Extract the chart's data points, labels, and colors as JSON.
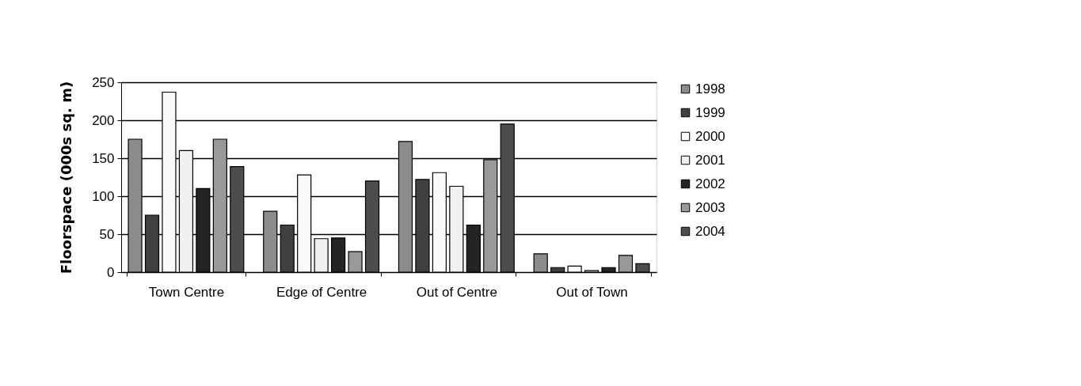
{
  "chart_data": {
    "type": "bar",
    "ylabel": "Floorspace (000s sq. m)",
    "categories": [
      "Town Centre",
      "Edge of Centre",
      "Out of Centre",
      "Out of Town"
    ],
    "series": [
      {
        "name": "1998",
        "color": "#8c8c8c",
        "values": [
          175,
          80,
          172,
          24
        ]
      },
      {
        "name": "1999",
        "color": "#404040",
        "values": [
          75,
          62,
          122,
          6
        ]
      },
      {
        "name": "2000",
        "color": "#fafafa",
        "values": [
          237,
          128,
          131,
          8
        ]
      },
      {
        "name": "2001",
        "color": "#f0f0f0",
        "values": [
          160,
          44,
          113,
          2
        ]
      },
      {
        "name": "2002",
        "color": "#242424",
        "values": [
          110,
          45,
          62,
          6
        ]
      },
      {
        "name": "2003",
        "color": "#999999",
        "values": [
          175,
          27,
          148,
          22
        ]
      },
      {
        "name": "2004",
        "color": "#4d4d4d",
        "values": [
          139,
          120,
          195,
          11
        ]
      }
    ],
    "ylim": [
      0,
      250
    ],
    "yticks": [
      0,
      50,
      100,
      150,
      200,
      250
    ],
    "grid": "y",
    "legend": "right"
  }
}
